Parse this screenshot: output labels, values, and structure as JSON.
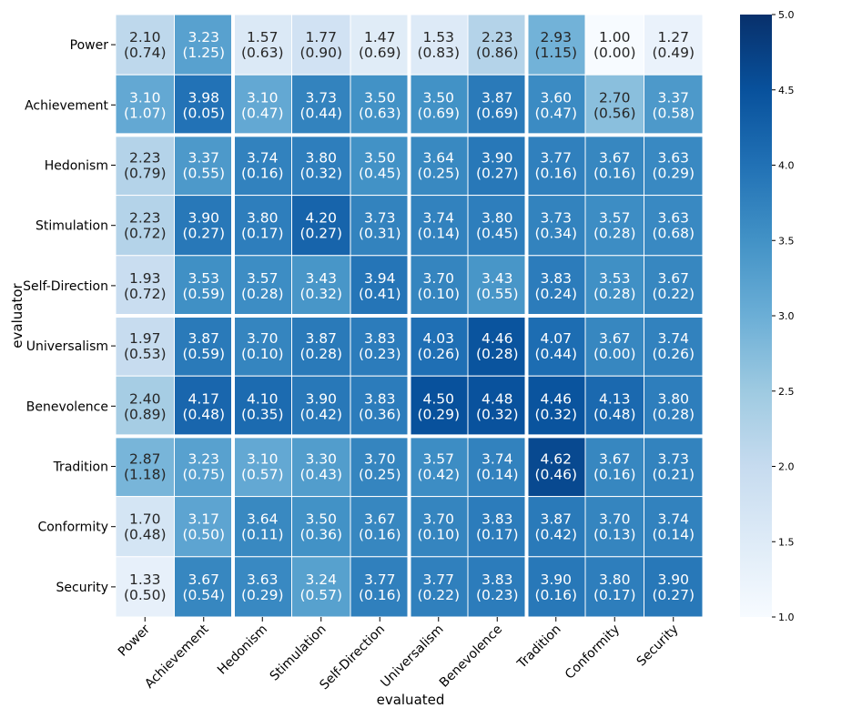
{
  "chart_data": {
    "type": "heatmap",
    "title": "",
    "xlabel": "evaluated",
    "ylabel": "evaluator",
    "rows": [
      "Power",
      "Achievement",
      "Hedonism",
      "Stimulation",
      "Self-Direction",
      "Universalism",
      "Benevolence",
      "Tradition",
      "Conformity",
      "Security"
    ],
    "columns": [
      "Power",
      "Achievement",
      "Hedonism",
      "Stimulation",
      "Self-Direction",
      "Universalism",
      "Benevolence",
      "Tradition",
      "Conformity",
      "Security"
    ],
    "means": [
      [
        "2.10",
        "3.23",
        "1.57",
        "1.77",
        "1.47",
        "1.53",
        "2.23",
        "2.93",
        "1.00",
        "1.27"
      ],
      [
        "3.10",
        "3.98",
        "3.10",
        "3.73",
        "3.50",
        "3.50",
        "3.87",
        "3.60",
        "2.70",
        "3.37"
      ],
      [
        "2.23",
        "3.37",
        "3.74",
        "3.80",
        "3.50",
        "3.64",
        "3.90",
        "3.77",
        "3.67",
        "3.63"
      ],
      [
        "2.23",
        "3.90",
        "3.80",
        "4.20",
        "3.73",
        "3.74",
        "3.80",
        "3.73",
        "3.57",
        "3.63"
      ],
      [
        "1.93",
        "3.53",
        "3.57",
        "3.43",
        "3.94",
        "3.70",
        "3.43",
        "3.83",
        "3.53",
        "3.67"
      ],
      [
        "1.97",
        "3.87",
        "3.70",
        "3.87",
        "3.83",
        "4.03",
        "4.46",
        "4.07",
        "3.67",
        "3.74"
      ],
      [
        "2.40",
        "4.17",
        "4.10",
        "3.90",
        "3.83",
        "4.50",
        "4.48",
        "4.46",
        "4.13",
        "3.80"
      ],
      [
        "2.87",
        "3.23",
        "3.10",
        "3.30",
        "3.70",
        "3.57",
        "3.74",
        "4.62",
        "3.67",
        "3.73"
      ],
      [
        "1.70",
        "3.17",
        "3.64",
        "3.50",
        "3.67",
        "3.70",
        "3.83",
        "3.87",
        "3.70",
        "3.74"
      ],
      [
        "1.33",
        "3.67",
        "3.63",
        "3.24",
        "3.77",
        "3.77",
        "3.83",
        "3.90",
        "3.80",
        "3.90"
      ]
    ],
    "stds": [
      [
        "0.74",
        "1.25",
        "0.63",
        "0.90",
        "0.69",
        "0.83",
        "0.86",
        "1.15",
        "0.00",
        "0.49"
      ],
      [
        "1.07",
        "0.05",
        "0.47",
        "0.44",
        "0.63",
        "0.69",
        "0.69",
        "0.47",
        "0.56",
        "0.58"
      ],
      [
        "0.79",
        "0.55",
        "0.16",
        "0.32",
        "0.45",
        "0.25",
        "0.27",
        "0.16",
        "0.16",
        "0.29"
      ],
      [
        "0.72",
        "0.27",
        "0.17",
        "0.27",
        "0.31",
        "0.14",
        "0.45",
        "0.34",
        "0.28",
        "0.68"
      ],
      [
        "0.72",
        "0.59",
        "0.28",
        "0.32",
        "0.41",
        "0.10",
        "0.55",
        "0.24",
        "0.28",
        "0.22"
      ],
      [
        "0.53",
        "0.59",
        "0.10",
        "0.28",
        "0.23",
        "0.26",
        "0.28",
        "0.44",
        "0.00",
        "0.26"
      ],
      [
        "0.89",
        "0.48",
        "0.35",
        "0.42",
        "0.36",
        "0.29",
        "0.32",
        "0.32",
        "0.48",
        "0.28"
      ],
      [
        "1.18",
        "0.75",
        "0.57",
        "0.43",
        "0.25",
        "0.42",
        "0.14",
        "0.46",
        "0.16",
        "0.21"
      ],
      [
        "0.48",
        "0.50",
        "0.11",
        "0.36",
        "0.16",
        "0.10",
        "0.17",
        "0.42",
        "0.13",
        "0.14"
      ],
      [
        "0.50",
        "0.54",
        "0.29",
        "0.57",
        "0.16",
        "0.22",
        "0.23",
        "0.16",
        "0.17",
        "0.27"
      ]
    ],
    "colorbar": {
      "min": 1.0,
      "max": 5.0,
      "ticks": [
        "1.0",
        "1.5",
        "2.0",
        "2.5",
        "3.0",
        "3.5",
        "4.0",
        "4.5",
        "5.0"
      ],
      "colormap": [
        "#f7fbff",
        "#deebf7",
        "#c6dbef",
        "#9ecae1",
        "#6baed6",
        "#4292c6",
        "#2171b5",
        "#08519c",
        "#08306b"
      ]
    },
    "group_separators_after_index": [
      1,
      4,
      6
    ]
  }
}
